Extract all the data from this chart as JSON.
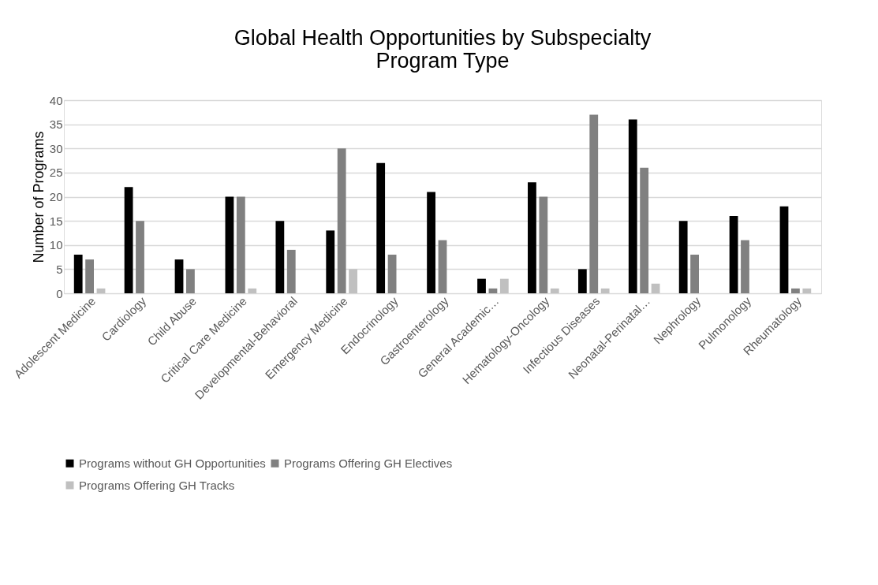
{
  "chart_data": {
    "type": "bar",
    "title": [
      "Global Health Opportunities by Subspecialty",
      "Program Type"
    ],
    "ylabel": "Number of Programs",
    "categories": [
      "Adolescent Medicine",
      "Cardiology",
      "Child Abuse",
      "Critical Care Medicine",
      "Developmental-Behavioral",
      "Emergency Medicine",
      "Endocrinology",
      "Gastroenterology",
      "General Academic…",
      "Hematology-Oncology",
      "Infectious Diseases",
      "Neonatal-Perinatal…",
      "Nephrology",
      "Pulmonology",
      "Rheumatology"
    ],
    "series": [
      {
        "name": "Programs without GH Opportunities",
        "color": "#000000",
        "values": [
          8,
          22,
          7,
          20,
          15,
          13,
          27,
          21,
          3,
          23,
          5,
          36,
          15,
          16,
          18
        ]
      },
      {
        "name": "Programs Offering GH Electives",
        "color": "#808080",
        "values": [
          7,
          15,
          5,
          20,
          9,
          30,
          8,
          11,
          1,
          20,
          37,
          26,
          8,
          11,
          1
        ]
      },
      {
        "name": "Programs Offering GH Tracks",
        "color": "#c0c0c0",
        "values": [
          1,
          0,
          0,
          1,
          0,
          5,
          0,
          0,
          3,
          1,
          1,
          2,
          0,
          0,
          1
        ]
      }
    ],
    "ylim": [
      0,
      40
    ],
    "yticks": [
      0,
      5,
      10,
      15,
      20,
      25,
      30,
      35,
      40
    ],
    "grid": "y",
    "legend": "bottom"
  }
}
